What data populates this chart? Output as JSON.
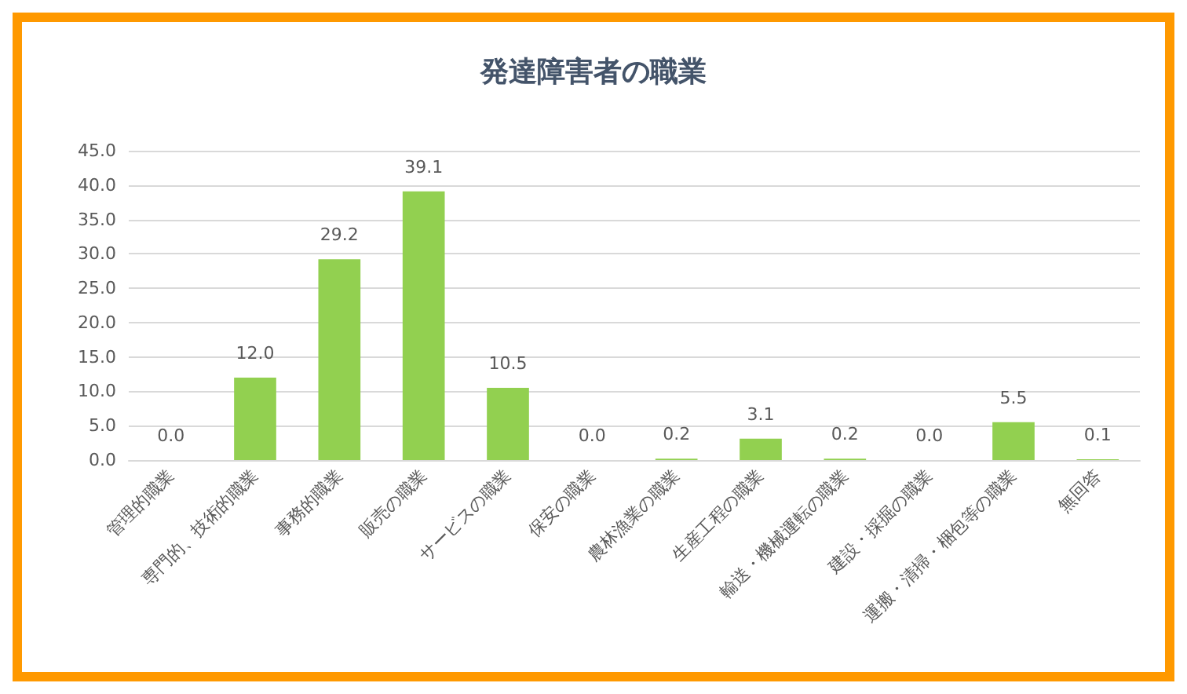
{
  "chart_data": {
    "type": "bar",
    "title": "発達障害者の職業",
    "categories": [
      "管理的職業",
      "専門的、技術的職業",
      "事務的職業",
      "販売の職業",
      "サービスの職業",
      "保安の職業",
      "農林漁業の職業",
      "生産工程の職業",
      "輸送・機械運転の職業",
      "建設・採掘の職業",
      "運搬・清掃・梱包等の職業",
      "無回答"
    ],
    "values": [
      0,
      12.0,
      29.2,
      39.1,
      10.5,
      0,
      0.2,
      3.1,
      0.2,
      0,
      5.5,
      0.1
    ],
    "value_labels": [
      "0.0",
      "12.0",
      "29.2",
      "39.1",
      "10.5",
      "0.0",
      "0.2",
      "3.1",
      "0.2",
      "0.0",
      "5.5",
      "0.1"
    ],
    "color": "#92d050",
    "ylim": [
      0,
      45
    ],
    "yticks": [
      {
        "value": 0,
        "label": "0.0"
      },
      {
        "value": 5,
        "label": "5.0"
      },
      {
        "value": 10,
        "label": "10.0"
      },
      {
        "value": 15,
        "label": "15.0"
      },
      {
        "value": 20,
        "label": "20.0"
      },
      {
        "value": 25,
        "label": "25.0"
      },
      {
        "value": 30,
        "label": "30.0"
      },
      {
        "value": 35,
        "label": "35.0"
      },
      {
        "value": 40,
        "label": "40.0"
      },
      {
        "value": 45,
        "label": "45.0"
      }
    ],
    "grid": "y"
  }
}
